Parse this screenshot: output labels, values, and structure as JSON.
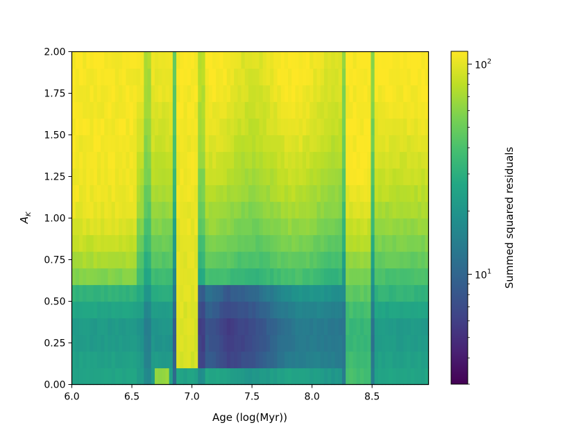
{
  "chart_data": {
    "type": "heatmap",
    "title": "",
    "xlabel": "Age (log(Myr))",
    "ylabel_main": "A",
    "ylabel_sub": "K",
    "xlim": [
      6.0,
      8.97
    ],
    "ylim": [
      0.0,
      2.0
    ],
    "x_ticks": [
      6.0,
      6.5,
      7.0,
      7.5,
      8.0,
      8.5
    ],
    "x_tick_labels": [
      "6.0",
      "6.5",
      "7.0",
      "7.5",
      "8.0",
      "8.5"
    ],
    "y_ticks": [
      0.0,
      0.25,
      0.5,
      0.75,
      1.0,
      1.25,
      1.5,
      1.75,
      2.0
    ],
    "y_tick_labels": [
      "0.00",
      "0.25",
      "0.50",
      "0.75",
      "1.00",
      "1.25",
      "1.50",
      "1.75",
      "2.00"
    ],
    "x_step": 0.03,
    "y_step": 0.1,
    "colorscale": "viridis",
    "color_scale_log": true,
    "color_range": [
      3,
      115
    ],
    "colorbar": {
      "label": "Summed squared residuals",
      "major_ticks": [
        {
          "value": 10,
          "base": "10",
          "exponent": "1"
        },
        {
          "value": 100,
          "base": "10",
          "exponent": "2"
        }
      ],
      "minor_ticks": [
        3,
        4,
        5,
        6,
        7,
        8,
        9,
        20,
        30,
        40,
        50,
        60,
        70,
        80,
        90
      ]
    },
    "description_profile": {
      "row_low_value_at_Ak": [
        0.0,
        0.1,
        0.2,
        0.3,
        0.4,
        0.5,
        0.6,
        0.7,
        0.8,
        0.9,
        1.0,
        1.2,
        1.5,
        1.8,
        2.0
      ],
      "row_low_value": [
        25,
        24,
        22,
        20,
        22,
        27,
        34,
        42,
        50,
        58,
        65,
        78,
        95,
        108,
        112
      ],
      "notable_features": [
        {
          "x_range": [
            6.6,
            6.65
          ],
          "kind": "dark-band"
        },
        {
          "x_range": [
            6.84,
            6.88
          ],
          "kind": "dark-band"
        },
        {
          "x_range": [
            6.88,
            7.06
          ],
          "kind": "bright-band"
        },
        {
          "x_range": [
            7.06,
            7.1
          ],
          "kind": "dark-band"
        },
        {
          "x_range": [
            8.24,
            8.28
          ],
          "kind": "dark-band"
        },
        {
          "x_range": [
            8.48,
            8.52
          ],
          "kind": "dark-band"
        }
      ]
    }
  }
}
